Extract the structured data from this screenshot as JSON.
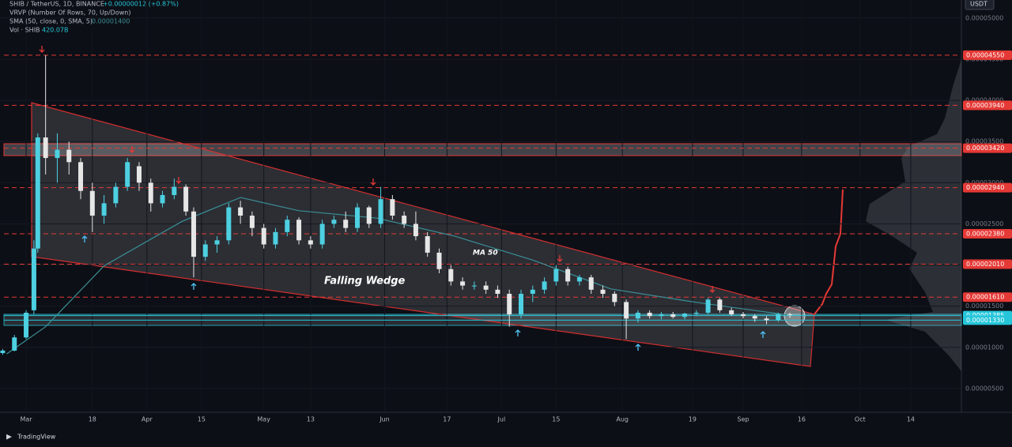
{
  "header": {
    "symbol": "SHIB / TetherUS, 1D, BINANCE",
    "change": "+0.00000012 (+0.87%)",
    "vrvp": "VRVP (Number Of Rows, 70, Up/Down)",
    "sma": "SMA (50, close, 0, SMA, 5)",
    "sma_value": "0.00001400",
    "vol": "Vol · SHIB",
    "vol_value": "420.07B",
    "currency": "USDT"
  },
  "chart_data": {
    "type": "candlestick",
    "annotation": "Falling Wedge",
    "up_color": "#4dd0e1",
    "down_color": "#e6e6e6",
    "x": [
      -6,
      -3,
      0,
      2,
      3,
      5,
      8,
      11,
      14,
      17,
      20,
      23,
      26,
      29,
      32,
      35,
      38,
      41,
      43,
      46,
      49,
      52,
      55,
      58,
      61,
      64,
      67,
      70,
      73,
      76,
      79,
      82,
      85,
      88,
      91,
      94,
      97,
      100,
      103,
      106,
      109,
      112,
      115,
      118,
      121,
      124,
      127,
      130,
      133,
      136,
      139,
      142,
      145,
      148,
      151,
      154,
      157,
      160,
      163,
      166,
      169,
      172,
      175,
      178,
      181,
      184,
      187,
      190,
      193,
      196
    ],
    "open": [
      9.3e-06,
      9.6e-06,
      1.12e-05,
      1.45e-05,
      2.2e-05,
      3.55e-05,
      3.3e-05,
      3.4e-05,
      3.25e-05,
      2.9e-05,
      2.6e-05,
      2.75e-05,
      2.95e-05,
      3.2e-05,
      3e-05,
      2.75e-05,
      2.85e-05,
      2.95e-05,
      2.65e-05,
      2.1e-05,
      2.25e-05,
      2.3e-05,
      2.7e-05,
      2.6e-05,
      2.45e-05,
      2.25e-05,
      2.4e-05,
      2.55e-05,
      2.3e-05,
      2.25e-05,
      2.5e-05,
      2.55e-05,
      2.45e-05,
      2.7e-05,
      2.5e-05,
      2.8e-05,
      2.6e-05,
      2.5e-05,
      2.35e-05,
      2.15e-05,
      1.95e-05,
      1.8e-05,
      1.75e-05,
      1.75e-05,
      1.7e-05,
      1.65e-05,
      1.4e-05,
      1.65e-05,
      1.7e-05,
      1.8e-05,
      1.95e-05,
      1.8e-05,
      1.85e-05,
      1.7e-05,
      1.65e-05,
      1.55e-05,
      1.35e-05,
      1.42e-05,
      1.38e-05,
      1.4e-05,
      1.37e-05,
      1.41e-05,
      1.42e-05,
      1.58e-05,
      1.45e-05,
      1.4e-05,
      1.38e-05,
      1.35e-05,
      1.33e-05,
      1.4e-05
    ],
    "high": [
      9.8e-06,
      1.15e-05,
      1.45e-05,
      2.3e-05,
      3.6e-05,
      4.55e-05,
      3.6e-05,
      3.5e-05,
      3.3e-05,
      3e-05,
      2.85e-05,
      3e-05,
      3.3e-05,
      3.25e-05,
      3.05e-05,
      2.9e-05,
      3.05e-05,
      2.98e-05,
      2.7e-05,
      2.3e-05,
      2.35e-05,
      2.75e-05,
      2.78e-05,
      2.65e-05,
      2.5e-05,
      2.45e-05,
      2.6e-05,
      2.58e-05,
      2.35e-05,
      2.55e-05,
      2.6e-05,
      2.65e-05,
      2.75e-05,
      2.72e-05,
      2.95e-05,
      2.85e-05,
      2.65e-05,
      2.65e-05,
      2.4e-05,
      2.2e-05,
      2e-05,
      1.85e-05,
      1.8e-05,
      1.8e-05,
      1.75e-05,
      1.7e-05,
      1.7e-05,
      1.75e-05,
      1.85e-05,
      2e-05,
      1.98e-05,
      1.88e-05,
      1.88e-05,
      1.75e-05,
      1.68e-05,
      1.58e-05,
      1.45e-05,
      1.45e-05,
      1.43e-05,
      1.43e-05,
      1.42e-05,
      1.45e-05,
      1.6e-05,
      1.6e-05,
      1.48e-05,
      1.43e-05,
      1.4e-05,
      1.38e-05,
      1.42e-05,
      1.42e-05
    ],
    "low": [
      9.1e-06,
      9.5e-06,
      1.1e-05,
      1.4e-05,
      2.15e-05,
      3.1e-05,
      3e-05,
      3.1e-05,
      2.8e-05,
      2.4e-05,
      2.5e-05,
      2.7e-05,
      2.9e-05,
      2.9e-05,
      2.65e-05,
      2.7e-05,
      2.8e-05,
      2.6e-05,
      1.85e-05,
      2.05e-05,
      2.15e-05,
      2.25e-05,
      2.5e-05,
      2.35e-05,
      2.2e-05,
      2.2e-05,
      2.35e-05,
      2.25e-05,
      2.2e-05,
      2.2e-05,
      2.45e-05,
      2.4e-05,
      2.4e-05,
      2.45e-05,
      2.45e-05,
      2.55e-05,
      2.45e-05,
      2.3e-05,
      2.1e-05,
      1.9e-05,
      1.75e-05,
      1.7e-05,
      1.7e-05,
      1.65e-05,
      1.6e-05,
      1.25e-05,
      1.35e-05,
      1.55e-05,
      1.65e-05,
      1.75e-05,
      1.75e-05,
      1.75e-05,
      1.65e-05,
      1.6e-05,
      1.5e-05,
      1.1e-05,
      1.3e-05,
      1.35e-05,
      1.34e-05,
      1.35e-05,
      1.34e-05,
      1.38e-05,
      1.4e-05,
      1.42e-05,
      1.38e-05,
      1.35e-05,
      1.31e-05,
      1.28e-05,
      1.31e-05,
      1.36e-05
    ],
    "close": [
      9.6e-06,
      1.12e-05,
      1.42e-05,
      2.2e-05,
      3.55e-05,
      3.3e-05,
      3.4e-05,
      3.25e-05,
      2.9e-05,
      2.6e-05,
      2.75e-05,
      2.95e-05,
      3.25e-05,
      3e-05,
      2.75e-05,
      2.85e-05,
      2.95e-05,
      2.65e-05,
      2.1e-05,
      2.25e-05,
      2.3e-05,
      2.7e-05,
      2.6e-05,
      2.45e-05,
      2.25e-05,
      2.4e-05,
      2.55e-05,
      2.3e-05,
      2.25e-05,
      2.5e-05,
      2.55e-05,
      2.45e-05,
      2.7e-05,
      2.5e-05,
      2.8e-05,
      2.6e-05,
      2.5e-05,
      2.35e-05,
      2.15e-05,
      1.95e-05,
      1.8e-05,
      1.75e-05,
      1.75e-05,
      1.7e-05,
      1.65e-05,
      1.4e-05,
      1.65e-05,
      1.7e-05,
      1.8e-05,
      1.95e-05,
      1.8e-05,
      1.85e-05,
      1.7e-05,
      1.65e-05,
      1.55e-05,
      1.35e-05,
      1.42e-05,
      1.38e-05,
      1.4e-05,
      1.37e-05,
      1.41e-05,
      1.42e-05,
      1.58e-05,
      1.45e-05,
      1.4e-05,
      1.38e-05,
      1.35e-05,
      1.33e-05,
      1.4e-05,
      1.39e-05
    ],
    "ma": {
      "name": "MA 50",
      "color": "#3a8f96",
      "x": [
        -5,
        5,
        20,
        40,
        55,
        70,
        90,
        110,
        130,
        150,
        170,
        185,
        196
      ],
      "values": [
        9.2e-06,
        1.25e-05,
        1.99e-05,
        2.53e-05,
        2.82e-05,
        2.66e-05,
        2.57e-05,
        2.35e-05,
        2.06e-05,
        1.71e-05,
        1.56e-05,
        1.46e-05,
        1.39e-05
      ]
    },
    "xlim": [
      -6.7,
      239.8
    ],
    "xticks": [
      {
        "value": 0,
        "label": "Mar"
      },
      {
        "value": 17,
        "label": "18"
      },
      {
        "value": 31,
        "label": "Apr"
      },
      {
        "value": 45,
        "label": "15"
      },
      {
        "value": 61,
        "label": "May"
      },
      {
        "value": 73,
        "label": "13"
      },
      {
        "value": 92,
        "label": "Jun"
      },
      {
        "value": 108,
        "label": "17"
      },
      {
        "value": 122,
        "label": "Jul"
      },
      {
        "value": 136,
        "label": "15"
      },
      {
        "value": 153,
        "label": "Aug"
      },
      {
        "value": 171,
        "label": "19"
      },
      {
        "value": 184,
        "label": "Sep"
      },
      {
        "value": 199,
        "label": "16"
      },
      {
        "value": 214,
        "label": "Oct"
      },
      {
        "value": 227,
        "label": "14"
      }
    ],
    "ylim": [
      2.3e-06,
      5.22e-05
    ],
    "yticks": [
      {
        "value": 5e-05,
        "label": "0.00005000"
      },
      {
        "value": 4.5e-05,
        "label": "0.00004500"
      },
      {
        "value": 4e-05,
        "label": "0.00004000"
      },
      {
        "value": 3.5e-05,
        "label": "0.00003500"
      },
      {
        "value": 3e-05,
        "label": "0.00003000"
      },
      {
        "value": 2.5e-05,
        "label": "0.00002500"
      },
      {
        "value": 2e-05,
        "label": "0.00002000"
      },
      {
        "value": 1.5e-05,
        "label": "0.00001500"
      },
      {
        "value": 1e-05,
        "label": "0.00001000"
      },
      {
        "value": 5e-06,
        "label": "0.00000500"
      }
    ],
    "levels": {
      "color": "#e53935",
      "items": [
        {
          "value": 4.55e-05,
          "label": "0.00004550"
        },
        {
          "value": 3.94e-05,
          "label": "0.00003940"
        },
        {
          "value": 3.42e-05,
          "label": "0.00003420"
        },
        {
          "value": 2.94e-05,
          "label": "0.00002940"
        },
        {
          "value": 2.38e-05,
          "label": "0.00002380"
        },
        {
          "value": 2.01e-05,
          "label": "0.00002010"
        },
        {
          "value": 1.61e-05,
          "label": "0.00001610"
        }
      ]
    },
    "price_lines": {
      "color": "#26c6da",
      "items": [
        {
          "value": 1.385e-05,
          "label": "0.00001385"
        },
        {
          "value": 1.33e-05,
          "label": "0.00001330"
        }
      ]
    }
  },
  "footer": {
    "brand": "TradingView"
  }
}
